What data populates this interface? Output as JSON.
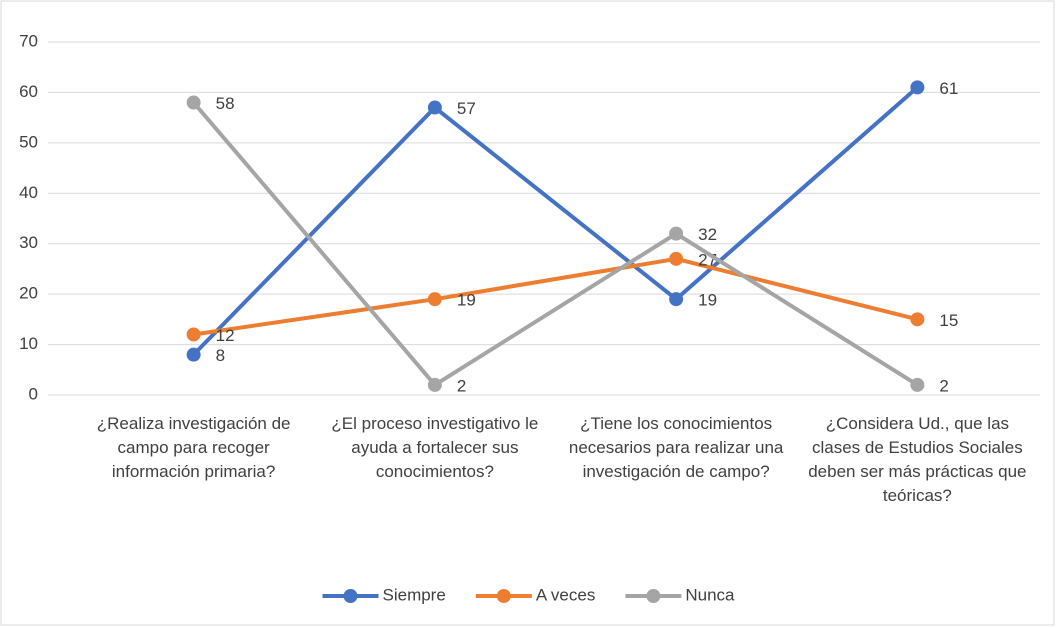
{
  "chart_data": {
    "type": "line",
    "categories": [
      "¿Realiza investigación de campo para recoger información primaria?",
      "¿El proceso investigativo le ayuda a fortalecer sus conocimientos?",
      "¿Tiene los conocimientos necesarios para realizar una investigación de campo?",
      "¿Considera Ud., que las clases de Estudios Sociales deben ser más prácticas que teóricas?"
    ],
    "series": [
      {
        "name": "Siempre",
        "color": "#4472c4",
        "values": [
          8,
          57,
          19,
          61
        ]
      },
      {
        "name": "A veces",
        "color": "#ed7d31",
        "values": [
          12,
          19,
          27,
          15
        ]
      },
      {
        "name": "Nunca",
        "color": "#a5a5a5",
        "values": [
          58,
          2,
          32,
          2
        ]
      }
    ],
    "ylim": [
      0,
      70
    ],
    "yticks": [
      0,
      10,
      20,
      30,
      40,
      50,
      60,
      70
    ],
    "grid": true,
    "legend": "bottom"
  }
}
